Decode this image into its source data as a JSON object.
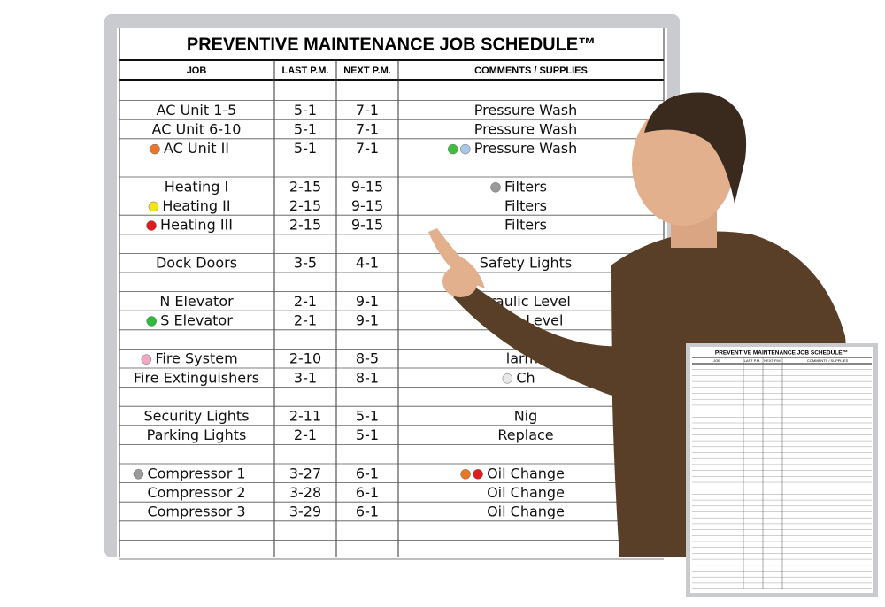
{
  "board": {
    "title": "PREVENTIVE MAINTENANCE JOB SCHEDULE™",
    "headers": [
      "JOB",
      "LAST P.M.",
      "NEXT P.M.",
      "COMMENTS / SUPPLIES"
    ],
    "groups": [
      [
        {
          "job": "AC Unit 1-5",
          "last": "5-1",
          "next": "7-1",
          "comments": "Pressure Wash"
        },
        {
          "job": "AC Unit 6-10",
          "last": "5-1",
          "next": "7-1",
          "comments": "Pressure Wash"
        },
        {
          "job": "AC Unit II",
          "last": "5-1",
          "next": "7-1",
          "comments": "Pressure Wash",
          "job_dots": [
            "#e8772a"
          ],
          "comment_dots": [
            "#3cbf3c",
            "#a9c8e6"
          ]
        }
      ],
      [
        {
          "job": "Heating I",
          "last": "2-15",
          "next": "9-15",
          "comments": "Filters",
          "comment_dots": [
            "#9a9a9a"
          ]
        },
        {
          "job": "Heating II",
          "last": "2-15",
          "next": "9-15",
          "comments": "Filters",
          "job_dots": [
            "#f2e51c"
          ]
        },
        {
          "job": "Heating III",
          "last": "2-15",
          "next": "9-15",
          "comments": "Filters",
          "job_dots": [
            "#e01b1b"
          ]
        }
      ],
      [
        {
          "job": "Dock Doors",
          "last": "3-5",
          "next": "4-1",
          "comments": "Safety Lights",
          "next_color": "#d4262e"
        }
      ],
      [
        {
          "job": "N Elevator",
          "last": "2-1",
          "next": "9-1",
          "comments": "draulic Level"
        },
        {
          "job": "S Elevator",
          "last": "2-1",
          "next": "9-1",
          "comments": "aulic Level",
          "job_dots": [
            "#2dbb3a"
          ]
        }
      ],
      [
        {
          "job": "Fire System",
          "last": "2-10",
          "next": "8-5",
          "comments": "larms",
          "job_dots": [
            "#f2a8c4"
          ],
          "comment_color": "#d4262e"
        },
        {
          "job": "Fire Extinguishers",
          "last": "3-1",
          "next": "8-1",
          "comments": "Ch",
          "comment_dots": [
            "#e8e8e8"
          ]
        }
      ],
      [
        {
          "job": "Security Lights",
          "last": "2-11",
          "next": "5-1",
          "comments": "Nig"
        },
        {
          "job": "Parking Lights",
          "last": "2-1",
          "next": "5-1",
          "comments": "Replace"
        }
      ],
      [
        {
          "job": "Compressor 1",
          "last": "3-27",
          "next": "6-1",
          "comments": "Oil Change",
          "job_dots": [
            "#9a9a9a"
          ],
          "comment_dots": [
            "#e8772a",
            "#e01b1b"
          ]
        },
        {
          "job": "Compressor 2",
          "last": "3-28",
          "next": "6-1",
          "comments": "Oil Change"
        },
        {
          "job": "Compressor 3",
          "last": "3-29",
          "next": "6-1",
          "comments": "Oil Change"
        }
      ]
    ]
  },
  "thumbnail": {
    "title": "PREVENTIVE MAINTENANCE JOB SCHEDULE™",
    "headers": [
      "JOB",
      "LAST P.M.",
      "NEXT P.M.",
      "COMMENTS / SUPPLIES"
    ]
  }
}
